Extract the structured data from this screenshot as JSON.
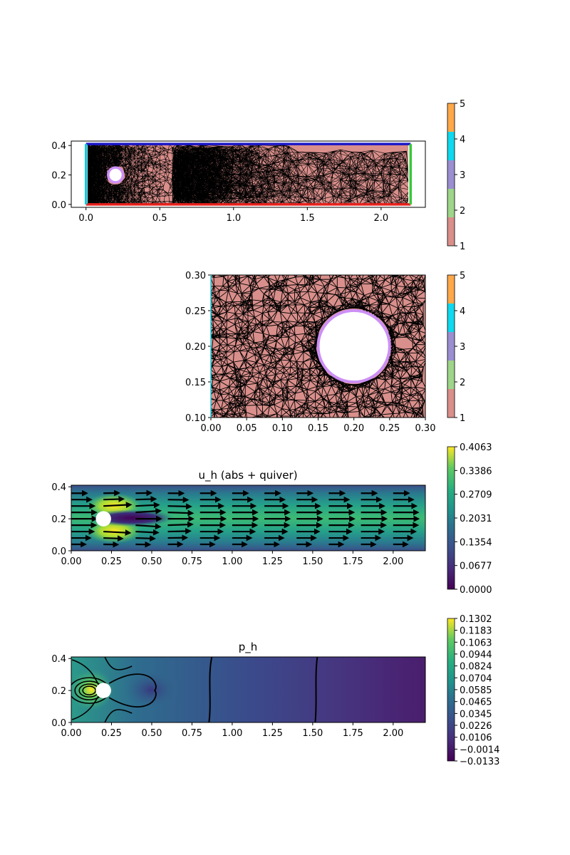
{
  "colors": {
    "region_1": "#d98f8b",
    "region_2": "#9fd48a",
    "region_3": "#9b8fd1",
    "region_4": "#10d8ee",
    "region_5": "#fda84a",
    "wall_top": "#1a17c8",
    "wall_bottom": "#e8201c",
    "inlet": "#12c8dc",
    "outlet": "#36c83a",
    "cylinder": "#cc8ff5"
  },
  "chart_data": [
    {
      "type": "heatmap",
      "title": "",
      "xlabel": "",
      "ylabel": "",
      "xlim": [
        -0.1,
        2.3
      ],
      "ylim": [
        -0.02,
        0.43
      ],
      "xticks": [
        "0.0",
        "0.5",
        "1.0",
        "1.5",
        "2.0"
      ],
      "xtick_values": [
        0.0,
        0.5,
        1.0,
        1.5,
        2.0
      ],
      "yticks": [
        "0.0",
        "0.2",
        "0.4"
      ],
      "ytick_values": [
        0.0,
        0.2,
        0.4
      ],
      "domain": {
        "x": [
          0.0,
          2.2
        ],
        "y": [
          0.0,
          0.41
        ]
      },
      "cylinder": {
        "cx": 0.2,
        "cy": 0.2,
        "r": 0.05
      },
      "colorbar": {
        "ticks": [
          "1",
          "2",
          "3",
          "4",
          "5"
        ],
        "tick_values": [
          1,
          2,
          3,
          4,
          5
        ],
        "range": [
          1,
          5
        ]
      }
    },
    {
      "type": "heatmap",
      "title": "",
      "xlabel": "",
      "ylabel": "",
      "xlim": [
        0.0,
        0.3
      ],
      "ylim": [
        0.1,
        0.3
      ],
      "xticks": [
        "0.00",
        "0.05",
        "0.10",
        "0.15",
        "0.20",
        "0.25",
        "0.30"
      ],
      "xtick_values": [
        0.0,
        0.05,
        0.1,
        0.15,
        0.2,
        0.25,
        0.3
      ],
      "yticks": [
        "0.10",
        "0.15",
        "0.20",
        "0.25",
        "0.30"
      ],
      "ytick_values": [
        0.1,
        0.15,
        0.2,
        0.25,
        0.3
      ],
      "cylinder": {
        "cx": 0.2,
        "cy": 0.2,
        "r": 0.05
      },
      "colorbar": {
        "ticks": [
          "1",
          "2",
          "3",
          "4",
          "5"
        ],
        "tick_values": [
          1,
          2,
          3,
          4,
          5
        ],
        "range": [
          1,
          5
        ]
      }
    },
    {
      "type": "heatmap",
      "title": "u_h (abs + quiver)",
      "xlabel": "",
      "ylabel": "",
      "xlim": [
        0.0,
        2.2
      ],
      "ylim": [
        0.0,
        0.41
      ],
      "xticks": [
        "0.00",
        "0.25",
        "0.50",
        "0.75",
        "1.00",
        "1.25",
        "1.50",
        "1.75",
        "2.00"
      ],
      "xtick_values": [
        0.0,
        0.25,
        0.5,
        0.75,
        1.0,
        1.25,
        1.5,
        1.75,
        2.0
      ],
      "yticks": [
        "0.0",
        "0.2",
        "0.4"
      ],
      "ytick_values": [
        0.0,
        0.2,
        0.4
      ],
      "value_range": [
        0.0,
        0.4063
      ],
      "cylinder": {
        "cx": 0.2,
        "cy": 0.2,
        "r": 0.05
      },
      "quiver_x": [
        0.0,
        0.2,
        0.4,
        0.6,
        0.8,
        1.0,
        1.2,
        1.4,
        1.6,
        1.8,
        2.0
      ],
      "quiver_y": [
        0.04,
        0.08,
        0.12,
        0.16,
        0.2,
        0.24,
        0.28,
        0.32,
        0.36
      ],
      "colorbar": {
        "ticks": [
          "0.0000",
          "0.0677",
          "0.1354",
          "0.2031",
          "0.2709",
          "0.3386",
          "0.4063"
        ],
        "tick_values": [
          0.0,
          0.0677,
          0.1354,
          0.2031,
          0.2709,
          0.3386,
          0.4063
        ],
        "range": [
          0.0,
          0.4063
        ]
      }
    },
    {
      "type": "heatmap",
      "title": "p_h",
      "xlabel": "",
      "ylabel": "",
      "xlim": [
        0.0,
        2.2
      ],
      "ylim": [
        0.0,
        0.41
      ],
      "xticks": [
        "0.00",
        "0.25",
        "0.50",
        "0.75",
        "1.00",
        "1.25",
        "1.50",
        "1.75",
        "2.00"
      ],
      "xtick_values": [
        0.0,
        0.25,
        0.5,
        0.75,
        1.0,
        1.25,
        1.5,
        1.75,
        2.0
      ],
      "yticks": [
        "0.0",
        "0.2",
        "0.4"
      ],
      "ytick_values": [
        0.0,
        0.2,
        0.4
      ],
      "value_range": [
        -0.0133,
        0.1302
      ],
      "cylinder": {
        "cx": 0.2,
        "cy": 0.2,
        "r": 0.05
      },
      "contour_lines_x": [
        0.86,
        1.52
      ],
      "colorbar": {
        "ticks": [
          "0.1302",
          "0.1183",
          "0.1063",
          "0.0944",
          "0.0824",
          "0.0704",
          "0.0585",
          "0.0465",
          "0.0345",
          "0.0226",
          "0.0106",
          "−0.0014",
          "−0.0133"
        ],
        "tick_values": [
          0.1302,
          0.1183,
          0.1063,
          0.0944,
          0.0824,
          0.0704,
          0.0585,
          0.0465,
          0.0345,
          0.0226,
          0.0106,
          -0.0014,
          -0.0133
        ],
        "range": [
          -0.0133,
          0.1302
        ]
      }
    }
  ]
}
